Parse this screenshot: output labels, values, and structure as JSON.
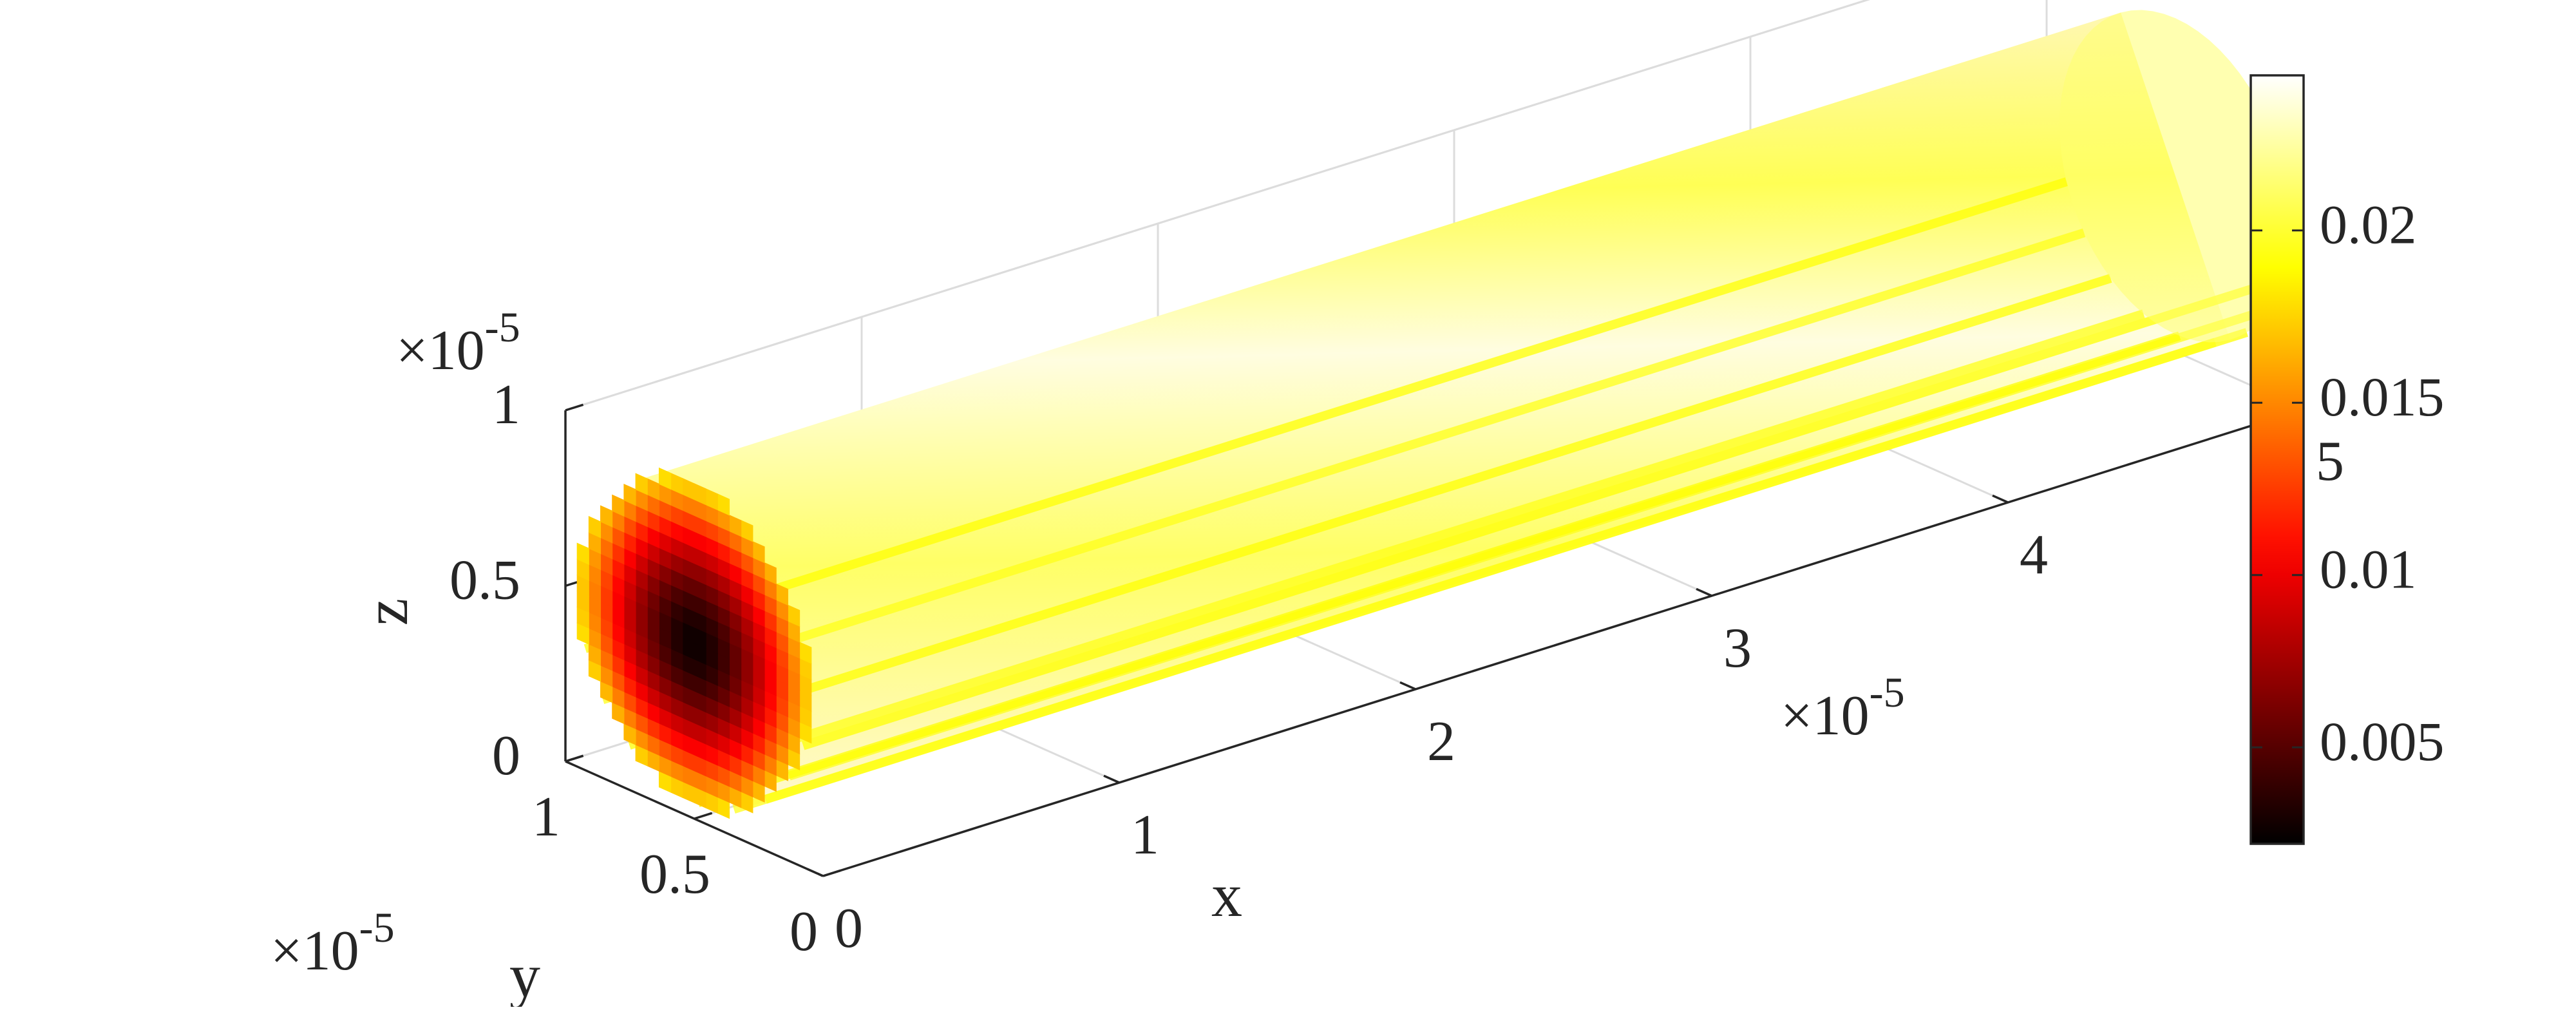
{
  "chart_data": {
    "type": "volumetric-3d-heatmap",
    "description_visible": "cylinder of voxels colored by value, hot colormap",
    "colormap": "hot",
    "axes": {
      "x": {
        "label": "x",
        "ticks": [
          0,
          1,
          2,
          3,
          4,
          5
        ],
        "tick_labels": [
          "0",
          "1",
          "2",
          "3",
          "4",
          "5"
        ],
        "multiplier": "×10",
        "exponent": "-5",
        "range": [
          0,
          5
        ]
      },
      "y": {
        "label": "y",
        "ticks": [
          0,
          0.5,
          1
        ],
        "tick_labels": [
          "0",
          "0.5",
          "1"
        ],
        "multiplier": "×10",
        "exponent": "-5",
        "range": [
          0,
          1
        ]
      },
      "z": {
        "label": "z",
        "ticks": [
          0,
          0.5,
          1
        ],
        "tick_labels": [
          "0",
          "0.5",
          "1"
        ],
        "multiplier": "×10",
        "exponent": "-5",
        "range": [
          0,
          1
        ]
      }
    },
    "colorbar": {
      "ticks": [
        0.005,
        0.01,
        0.015,
        0.02
      ],
      "tick_labels": [
        "0.005",
        "0.01",
        "0.015",
        "0.02"
      ],
      "range": [
        0.0022,
        0.0245
      ]
    },
    "end_cap_values": {
      "center": 0.0025,
      "rim": 0.018
    },
    "body_value_range": [
      0.019,
      0.024
    ]
  },
  "colors": {
    "background": "#ffffff",
    "axis_line": "#262626",
    "grid_line": "#dcdcdc",
    "text": "#262626"
  }
}
